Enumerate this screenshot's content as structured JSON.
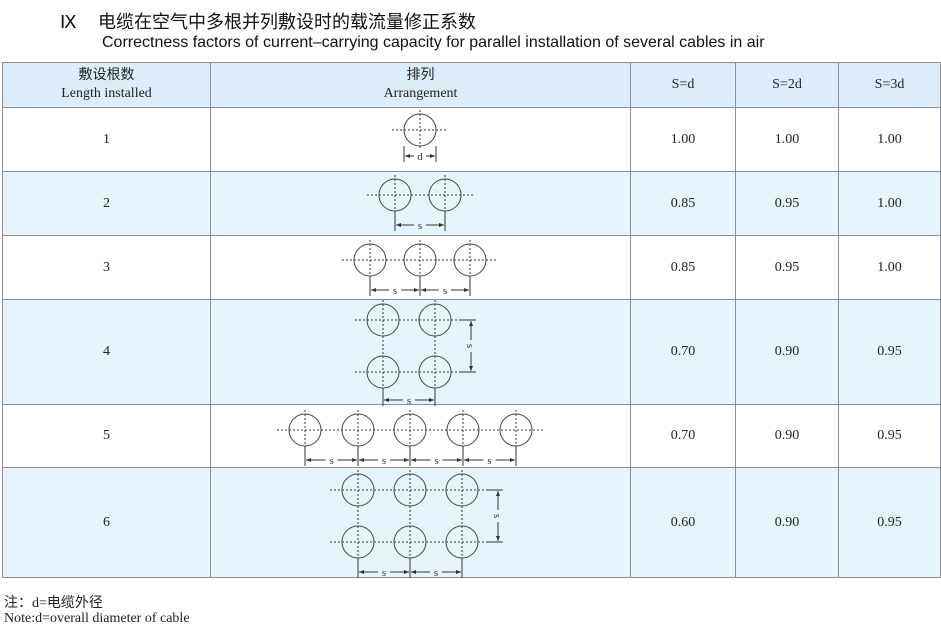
{
  "title": {
    "number": "Ⅸ",
    "zh": "电缆在空气中多根并列敷设时的载流量修正系数",
    "en": "Correctness factors of current–carrying capacity for parallel installation of several cables in air"
  },
  "table": {
    "headers": {
      "count_zh": "敷设根数",
      "count_en": "Length installed",
      "arr_zh": "排列",
      "arr_en": "Arrangement",
      "s1": "S=d",
      "s2": "S=2d",
      "s3": "S=3d"
    },
    "rows": [
      {
        "count": "1",
        "f1": "1.00",
        "f2": "1.00",
        "f3": "1.00",
        "cols": 1,
        "rows": 1
      },
      {
        "count": "2",
        "f1": "0.85",
        "f2": "0.95",
        "f3": "1.00",
        "cols": 2,
        "rows": 1
      },
      {
        "count": "3",
        "f1": "0.85",
        "f2": "0.95",
        "f3": "1.00",
        "cols": 3,
        "rows": 1
      },
      {
        "count": "4",
        "f1": "0.70",
        "f2": "0.90",
        "f3": "0.95",
        "cols": 2,
        "rows": 2
      },
      {
        "count": "5",
        "f1": "0.70",
        "f2": "0.90",
        "f3": "0.95",
        "cols": 5,
        "rows": 1
      },
      {
        "count": "6",
        "f1": "0.60",
        "f2": "0.90",
        "f3": "0.95",
        "cols": 3,
        "rows": 2
      }
    ],
    "dim_labels": {
      "diameter": "d",
      "spacing": "s"
    }
  },
  "notes": {
    "zh": "注：d=电缆外径",
    "en": "Note:d=overall diameter of cable"
  },
  "colors": {
    "header_bg": "#dcedf9",
    "alt_row_bg": "#e8f4fb",
    "border": "#8a9096"
  }
}
